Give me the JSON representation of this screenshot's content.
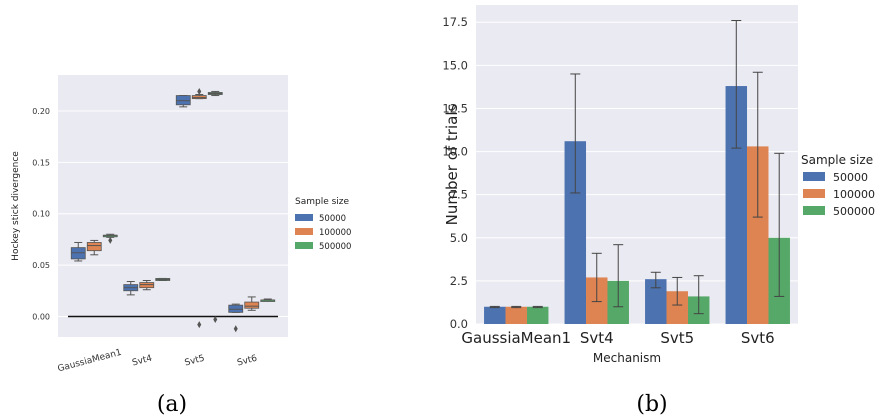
{
  "chart_data": [
    {
      "type": "box",
      "ylabel": "Hockey stick divergence",
      "categories": [
        "GaussiaMean1",
        "Svt4",
        "Svt5",
        "Svt6"
      ],
      "yticks": [
        "0.00",
        "0.05",
        "0.10",
        "0.15",
        "0.20"
      ],
      "ylim": [
        -0.02,
        0.235
      ],
      "reference_line": 0.0,
      "legend_title": "Sample size",
      "legend_position": "right",
      "grid": true,
      "series": [
        {
          "name": "50000",
          "color": "#4c72b0",
          "boxes": [
            {
              "min": 0.054,
              "q1": 0.056,
              "median": 0.062,
              "q3": 0.067,
              "max": 0.072,
              "fliers": []
            },
            {
              "min": 0.021,
              "q1": 0.025,
              "median": 0.028,
              "q3": 0.031,
              "max": 0.034,
              "fliers": []
            },
            {
              "min": 0.204,
              "q1": 0.206,
              "median": 0.21,
              "q3": 0.215,
              "max": 0.215,
              "fliers": []
            },
            {
              "min": 0.004,
              "q1": 0.004,
              "median": 0.007,
              "q3": 0.011,
              "max": 0.012,
              "fliers": [
                -0.012
              ]
            }
          ]
        },
        {
          "name": "100000",
          "color": "#dd8452",
          "boxes": [
            {
              "min": 0.06,
              "q1": 0.064,
              "median": 0.069,
              "q3": 0.072,
              "max": 0.074,
              "fliers": []
            },
            {
              "min": 0.026,
              "q1": 0.028,
              "median": 0.031,
              "q3": 0.033,
              "max": 0.035,
              "fliers": []
            },
            {
              "min": 0.212,
              "q1": 0.212,
              "median": 0.213,
              "q3": 0.215,
              "max": 0.216,
              "fliers": [
                0.219,
                -0.008
              ]
            },
            {
              "min": 0.006,
              "q1": 0.008,
              "median": 0.01,
              "q3": 0.014,
              "max": 0.019,
              "fliers": []
            }
          ]
        },
        {
          "name": "500000",
          "color": "#55a868",
          "boxes": [
            {
              "min": 0.077,
              "q1": 0.078,
              "median": 0.079,
              "q3": 0.079,
              "max": 0.08,
              "fliers": [
                0.074
              ]
            },
            {
              "min": 0.035,
              "q1": 0.035,
              "median": 0.036,
              "q3": 0.037,
              "max": 0.037,
              "fliers": []
            },
            {
              "min": 0.215,
              "q1": 0.216,
              "median": 0.217,
              "q3": 0.218,
              "max": 0.219,
              "fliers": [
                -0.003
              ]
            },
            {
              "min": 0.015,
              "q1": 0.015,
              "median": 0.016,
              "q3": 0.016,
              "max": 0.017,
              "fliers": []
            }
          ]
        }
      ],
      "caption": "(a)"
    },
    {
      "type": "bar",
      "xlabel": "Mechanism",
      "ylabel": "Number of trials",
      "categories": [
        "GaussiaMean1",
        "Svt4",
        "Svt5",
        "Svt6"
      ],
      "yticks": [
        "0.0",
        "2.5",
        "5.0",
        "7.5",
        "10.0",
        "12.5",
        "15.0",
        "17.5"
      ],
      "ylim": [
        0,
        18.5
      ],
      "legend_title": "Sample size",
      "legend_position": "right",
      "grid": true,
      "series": [
        {
          "name": "50000",
          "color": "#4c72b0",
          "values": [
            1.0,
            10.6,
            2.6,
            13.8
          ],
          "err_low": [
            0.95,
            7.6,
            2.1,
            10.2
          ],
          "err_high": [
            1.02,
            14.5,
            3.0,
            17.6
          ]
        },
        {
          "name": "100000",
          "color": "#dd8452",
          "values": [
            1.0,
            2.7,
            1.9,
            10.3
          ],
          "err_low": [
            0.95,
            1.3,
            1.1,
            6.2
          ],
          "err_high": [
            1.02,
            4.1,
            2.7,
            14.6
          ]
        },
        {
          "name": "500000",
          "color": "#55a868",
          "values": [
            1.0,
            2.5,
            1.6,
            5.0
          ],
          "err_low": [
            0.95,
            1.0,
            0.6,
            1.6
          ],
          "err_high": [
            1.02,
            4.6,
            2.8,
            9.9
          ]
        }
      ],
      "caption": "(b)"
    }
  ]
}
